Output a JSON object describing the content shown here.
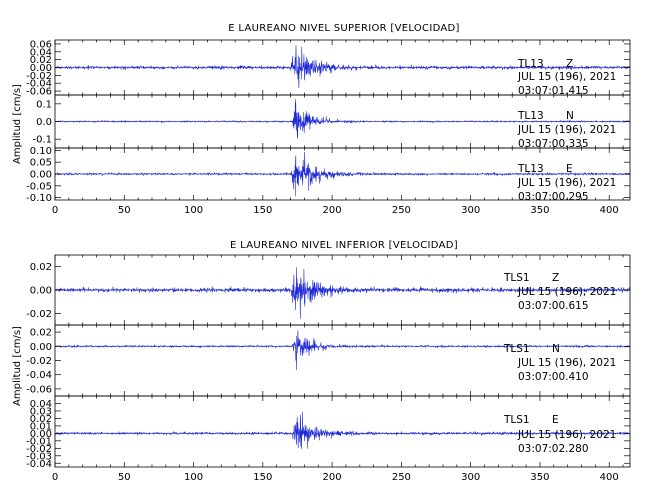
{
  "chart_data": [
    {
      "type": "line",
      "title": "E LAUREANO NIVEL SUPERIOR [VELOCIDAD]",
      "ylabel": "Amplitud [cm/s]",
      "xlim": [
        0,
        415
      ],
      "x_ticks": [
        0,
        50,
        100,
        150,
        200,
        250,
        300,
        350,
        400
      ],
      "line_color": "#1f2bd6",
      "panels": [
        {
          "station": "TL13",
          "component": "Z",
          "date": "JUL 15 (196), 2021",
          "time": "03:07:01.415",
          "ylim": [
            -0.07,
            0.07
          ],
          "y_ticks": [
            -0.06,
            -0.04,
            -0.02,
            0.0,
            0.02,
            0.04,
            0.06
          ],
          "y_tick_labels": [
            "-0.06",
            "-0.04",
            "-0.02",
            "0.00",
            "0.02",
            "0.04",
            "0.06"
          ],
          "noise": 0.0035,
          "peak": 0.06,
          "onset": 171,
          "decay": 11
        },
        {
          "station": "TL13",
          "component": "N",
          "date": "JUL 15 (196), 2021",
          "time": "03:07:00.335",
          "ylim": [
            -0.15,
            0.15
          ],
          "y_ticks": [
            -0.1,
            0.0,
            0.1
          ],
          "y_tick_labels": [
            "-0.1",
            "0.0",
            "0.1"
          ],
          "noise": 0.004,
          "peak": 0.09,
          "onset": 172,
          "decay": 10
        },
        {
          "station": "TL13",
          "component": "E",
          "date": "JUL 15 (196), 2021",
          "time": "03:07:00.295",
          "ylim": [
            -0.11,
            0.11
          ],
          "y_ticks": [
            -0.1,
            -0.05,
            0.0,
            0.05,
            0.1
          ],
          "y_tick_labels": [
            "-0.10",
            "-0.05",
            "0.00",
            "0.05",
            "0.10"
          ],
          "noise": 0.004,
          "peak": 0.095,
          "onset": 171,
          "decay": 12
        }
      ]
    },
    {
      "type": "line",
      "title": "E LAUREANO NIVEL INFERIOR [VELOCIDAD]",
      "ylabel": "Amplitud [cm/s]",
      "xlim": [
        0,
        415
      ],
      "x_ticks": [
        0,
        50,
        100,
        150,
        200,
        250,
        300,
        350,
        400
      ],
      "line_color": "#1f2bd6",
      "panels": [
        {
          "station": "TLS1",
          "component": "Z",
          "date": "JUL 15 (196), 2021",
          "time": "03:07:00.615",
          "ylim": [
            -0.03,
            0.03
          ],
          "y_ticks": [
            -0.02,
            0.0,
            0.02
          ],
          "y_tick_labels": [
            "-0.02",
            "0.00",
            "0.02"
          ],
          "noise": 0.0015,
          "peak": 0.026,
          "onset": 171,
          "decay": 11
        },
        {
          "station": "TLS1",
          "component": "N",
          "date": "JUL 15 (196), 2021",
          "time": "03:07:00.410",
          "ylim": [
            -0.07,
            0.03
          ],
          "y_ticks": [
            -0.06,
            -0.04,
            -0.02,
            0.0,
            0.02
          ],
          "y_tick_labels": [
            "-0.06",
            "-0.04",
            "-0.02",
            "0.00",
            "0.02"
          ],
          "noise": 0.0012,
          "peak": 0.022,
          "onset": 172,
          "decay": 10
        },
        {
          "station": "TLS1",
          "component": "E",
          "date": "JUL 15 (196), 2021",
          "time": "03:07:02.280",
          "ylim": [
            -0.045,
            0.05
          ],
          "y_ticks": [
            -0.04,
            -0.03,
            -0.02,
            -0.01,
            0.0,
            0.01,
            0.02,
            0.03,
            0.04
          ],
          "y_tick_labels": [
            "-0.04",
            "-0.03",
            "-0.02",
            "-0.01",
            "0.00",
            "0.01",
            "0.02",
            "0.03",
            "0.04"
          ],
          "noise": 0.0015,
          "peak": 0.03,
          "onset": 172,
          "decay": 11
        }
      ]
    }
  ]
}
